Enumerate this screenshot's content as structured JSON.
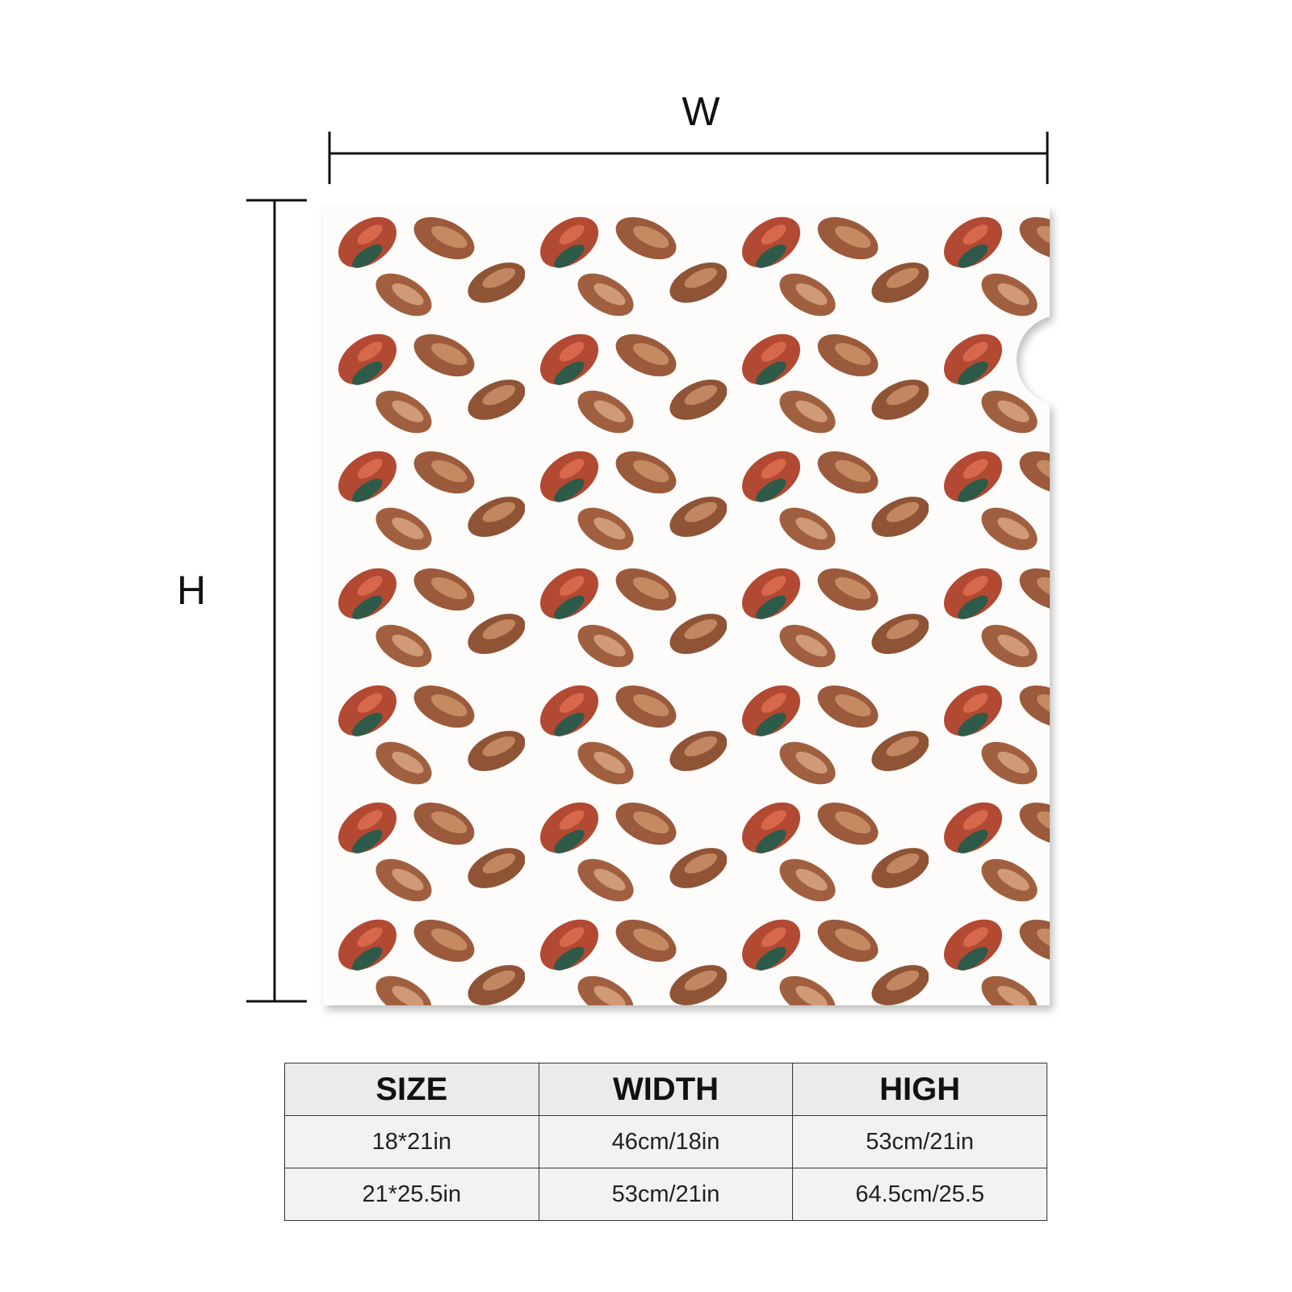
{
  "dimensions": {
    "width_label": "W",
    "height_label": "H"
  },
  "table": {
    "header": [
      "SIZE",
      "WIDTH",
      "HIGH"
    ],
    "rows": [
      [
        "18*21in",
        "46cm/18in",
        "53cm/21in"
      ],
      [
        "21*25.5in",
        "53cm/21in",
        "64.5cm/25.5"
      ]
    ]
  }
}
